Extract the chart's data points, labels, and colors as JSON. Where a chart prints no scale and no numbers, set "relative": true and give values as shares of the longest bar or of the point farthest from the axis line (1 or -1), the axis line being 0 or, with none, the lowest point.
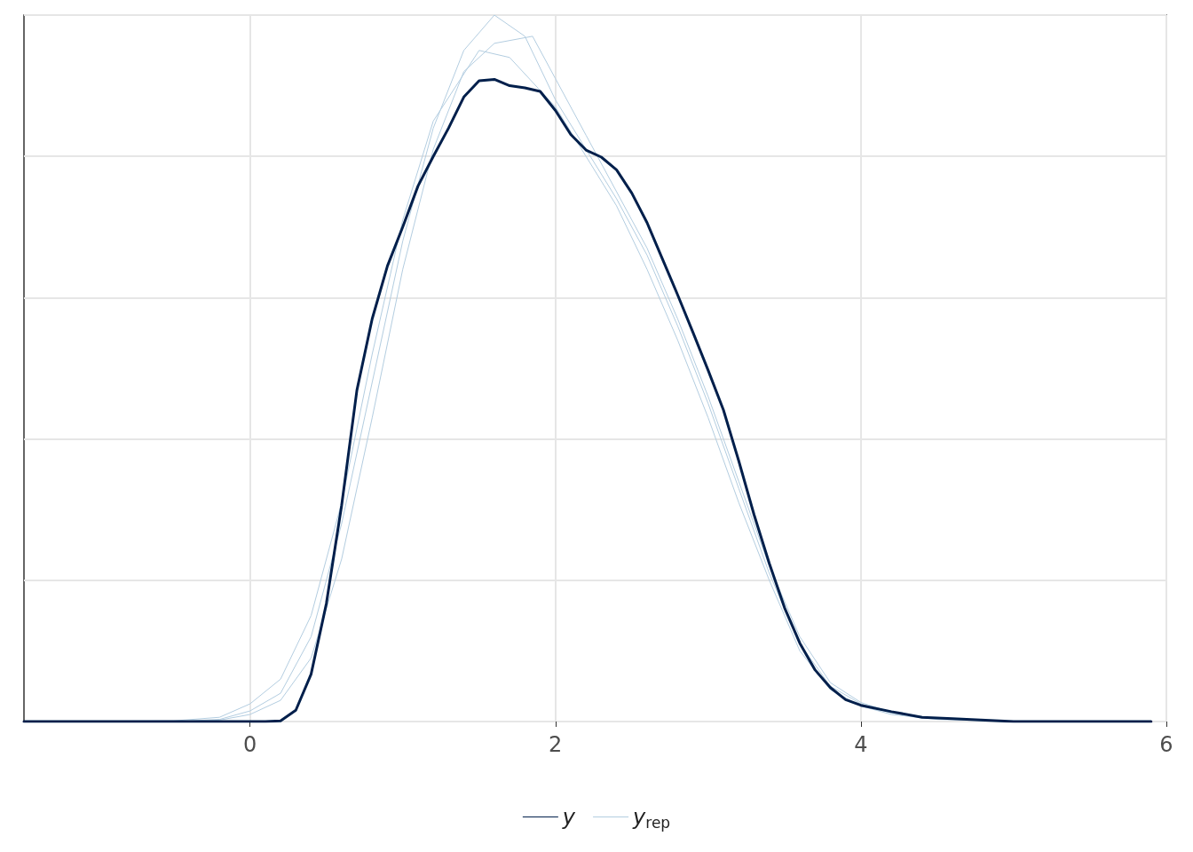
{
  "chart_data": {
    "type": "line",
    "relative": true,
    "xlim": [
      -1.48,
      6.0
    ],
    "xticks": [
      0,
      2,
      4,
      6
    ],
    "grid": true,
    "legend": "bottom",
    "line_style": "solid",
    "marker": "none",
    "series": [
      {
        "name": "y$_{rep}$",
        "color": "#b3cde0",
        "x": [
          -1.48,
          -0.5,
          -0.2,
          0,
          0.2,
          0.4,
          0.6,
          0.8,
          1.0,
          1.2,
          1.4,
          1.6,
          1.8,
          2.0,
          2.2,
          2.4,
          2.6,
          2.8,
          3.0,
          3.2,
          3.4,
          3.6,
          3.8,
          4.0,
          4.2,
          4.5,
          5.0,
          5.9
        ],
        "values": [
          0,
          0,
          0.003,
          0.015,
          0.04,
          0.12,
          0.28,
          0.48,
          0.68,
          0.84,
          0.95,
          1.0,
          0.97,
          0.88,
          0.81,
          0.74,
          0.66,
          0.56,
          0.45,
          0.33,
          0.21,
          0.11,
          0.05,
          0.025,
          0.012,
          0.004,
          0,
          0
        ]
      },
      {
        "color": "#b3cde0",
        "x": [
          -1.48,
          -0.5,
          -0.2,
          0,
          0.2,
          0.4,
          0.6,
          0.8,
          1.0,
          1.2,
          1.4,
          1.6,
          1.85,
          2.0,
          2.2,
          2.4,
          2.6,
          2.8,
          3.0,
          3.2,
          3.4,
          3.6,
          3.8,
          4.0,
          4.2,
          4.5,
          5.0,
          5.9
        ],
        "values": [
          0,
          0,
          0.002,
          0.01,
          0.03,
          0.09,
          0.23,
          0.43,
          0.64,
          0.81,
          0.92,
          0.96,
          0.97,
          0.91,
          0.83,
          0.75,
          0.67,
          0.57,
          0.46,
          0.34,
          0.22,
          0.12,
          0.055,
          0.027,
          0.013,
          0.004,
          0,
          0
        ]
      },
      {
        "color": "#b3cde0",
        "x": [
          -1.48,
          -0.5,
          -0.2,
          0,
          0.2,
          0.4,
          0.6,
          0.8,
          1.0,
          1.2,
          1.5,
          1.7,
          2.0,
          2.2,
          2.4,
          2.6,
          2.8,
          3.0,
          3.2,
          3.4,
          3.6,
          3.8,
          4.0,
          4.2,
          4.5,
          5.0,
          5.9
        ],
        "values": [
          0,
          0.001,
          0.006,
          0.025,
          0.06,
          0.15,
          0.31,
          0.52,
          0.71,
          0.85,
          0.95,
          0.94,
          0.87,
          0.8,
          0.73,
          0.64,
          0.54,
          0.43,
          0.31,
          0.2,
          0.1,
          0.045,
          0.022,
          0.01,
          0.003,
          0,
          0
        ]
      },
      {
        "name": "y",
        "color": "#011f4b",
        "x": [
          -1.48,
          0.1,
          0.2,
          0.3,
          0.4,
          0.5,
          0.6,
          0.7,
          0.8,
          0.9,
          1.0,
          1.1,
          1.2,
          1.3,
          1.4,
          1.5,
          1.6,
          1.7,
          1.8,
          1.9,
          2.0,
          2.1,
          2.2,
          2.3,
          2.4,
          2.5,
          2.6,
          2.7,
          2.8,
          2.9,
          3.0,
          3.1,
          3.2,
          3.3,
          3.4,
          3.5,
          3.6,
          3.7,
          3.8,
          3.9,
          4.0,
          4.2,
          4.4,
          4.6,
          5.0,
          5.9
        ],
        "values": [
          0,
          0,
          0.001,
          0.016,
          0.067,
          0.167,
          0.306,
          0.469,
          0.57,
          0.645,
          0.7,
          0.758,
          0.8,
          0.84,
          0.884,
          0.907,
          0.909,
          0.9,
          0.897,
          0.892,
          0.865,
          0.831,
          0.809,
          0.799,
          0.781,
          0.748,
          0.706,
          0.655,
          0.604,
          0.551,
          0.497,
          0.441,
          0.369,
          0.293,
          0.224,
          0.161,
          0.111,
          0.073,
          0.048,
          0.031,
          0.023,
          0.014,
          0.006,
          0.004,
          0,
          0
        ]
      }
    ]
  }
}
